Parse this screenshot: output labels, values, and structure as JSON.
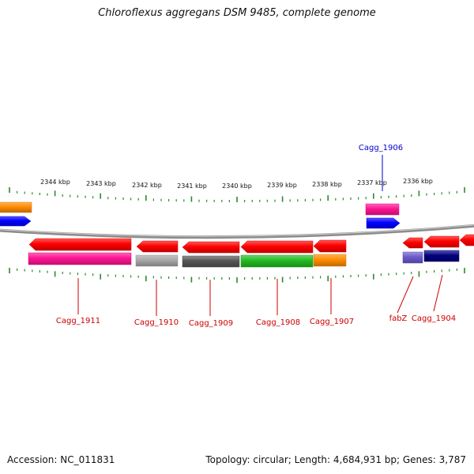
{
  "title": "Chloroflexus aggregans DSM 9485, complete genome",
  "footer": {
    "accession": "Accession: NC_011831",
    "summary": "Topology: circular; Length: 4,684,931 bp; Genes: 3,787"
  },
  "colors": {
    "backbone": "#8c8c8c",
    "tick": "#2a8a2a",
    "gene_label": "#cc0000",
    "highlight_label": "#0000cc",
    "cds": "#ff0000",
    "orange": "#ff8c00",
    "blue": "#0000ff",
    "pink": "#ff1493",
    "gray": "#a8a8a8",
    "dark_gray": "#555555",
    "green": "#22bb22",
    "purple": "#6a5acd",
    "navy": "#000080"
  },
  "scale_labels": [
    "2344 kbp",
    "2343 kbp",
    "2342 kbp",
    "2341 kbp",
    "2340 kbp",
    "2339 kbp",
    "2338 kbp",
    "2337 kbp",
    "2336 kbp"
  ],
  "gene_labels": [
    {
      "name": "Cagg_1911",
      "color": "red"
    },
    {
      "name": "Cagg_1910",
      "color": "red"
    },
    {
      "name": "Cagg_1909",
      "color": "red"
    },
    {
      "name": "Cagg_1908",
      "color": "red"
    },
    {
      "name": "Cagg_1907",
      "color": "red"
    },
    {
      "name": "fabZ",
      "color": "red"
    },
    {
      "name": "Cagg_1904",
      "color": "red"
    },
    {
      "name": "Cagg_1906",
      "color": "blue"
    }
  ],
  "features": [
    {
      "id": "orange-left-edge",
      "color": "orange"
    },
    {
      "id": "blue-left-edge",
      "color": "blue"
    },
    {
      "id": "cagg1906-pink",
      "color": "pink"
    },
    {
      "id": "cagg1906-blue",
      "color": "blue"
    },
    {
      "id": "cagg1911-cds",
      "color": "cds"
    },
    {
      "id": "cagg1911-gene",
      "color": "pink"
    },
    {
      "id": "cagg1910-cds",
      "color": "cds"
    },
    {
      "id": "cagg1910-gene",
      "color": "gray"
    },
    {
      "id": "cagg1909-cds",
      "color": "cds"
    },
    {
      "id": "cagg1909-gene",
      "color": "dark_gray"
    },
    {
      "id": "cagg1908-cds",
      "color": "cds"
    },
    {
      "id": "cagg1908-gene",
      "color": "green"
    },
    {
      "id": "cagg1907-cds",
      "color": "cds"
    },
    {
      "id": "cagg1907-gene",
      "color": "orange"
    },
    {
      "id": "fabz-cds",
      "color": "cds"
    },
    {
      "id": "fabz-gene",
      "color": "purple"
    },
    {
      "id": "cagg1904-cds",
      "color": "cds"
    },
    {
      "id": "cagg1904-gene",
      "color": "navy"
    },
    {
      "id": "right-edge-cds",
      "color": "cds"
    }
  ]
}
